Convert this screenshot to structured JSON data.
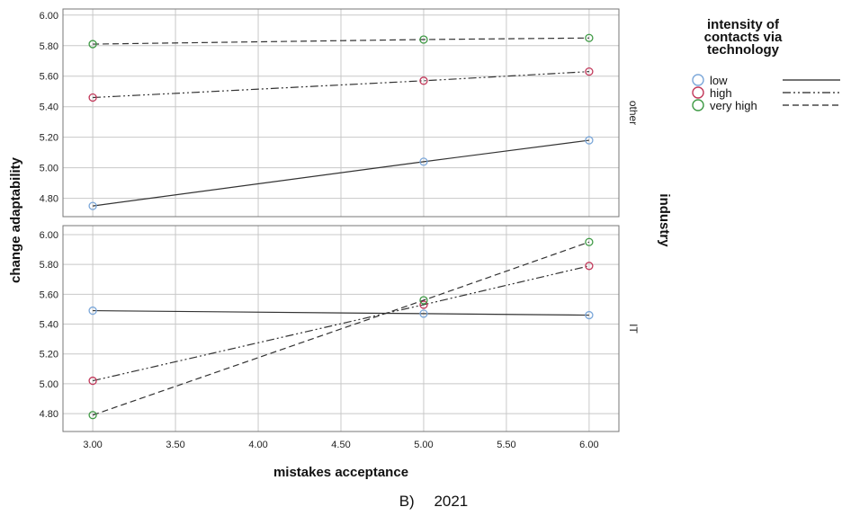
{
  "chart_data": {
    "type": "line",
    "x": [
      3,
      5,
      6
    ],
    "x_ticks": [
      "3.00",
      "3.50",
      "4.00",
      "4.50",
      "5.00",
      "5.50",
      "6.00"
    ],
    "xlim": [
      2.82,
      6.18
    ],
    "xlabel": "mistakes acceptance",
    "ylabel": "change adaptability",
    "row_label": "industry",
    "legend": {
      "title_lines": [
        "intensity of",
        "contacts via",
        "technology"
      ],
      "placement": "top-right, outside plot"
    },
    "grid": true,
    "caption": "B)  2021",
    "panels": [
      {
        "label": "other",
        "ylim": [
          4.68,
          6.04
        ],
        "y_ticks": [
          "4.80",
          "5.00",
          "5.20",
          "5.40",
          "5.60",
          "5.80",
          "6.00"
        ],
        "series": [
          {
            "name": "low",
            "values": [
              4.75,
              5.04,
              5.18
            ]
          },
          {
            "name": "high",
            "values": [
              5.46,
              5.57,
              5.63
            ]
          },
          {
            "name": "very high",
            "values": [
              5.81,
              5.84,
              5.85
            ]
          }
        ]
      },
      {
        "label": "IT",
        "ylim": [
          4.68,
          6.06
        ],
        "y_ticks": [
          "4.80",
          "5.00",
          "5.20",
          "5.40",
          "5.60",
          "5.80",
          "6.00"
        ],
        "series": [
          {
            "name": "low",
            "values": [
              5.49,
              5.47,
              5.46
            ]
          },
          {
            "name": "high",
            "values": [
              5.02,
              5.53,
              5.79
            ]
          },
          {
            "name": "very high",
            "values": [
              4.79,
              5.56,
              5.95
            ]
          }
        ]
      }
    ],
    "series_styles": [
      {
        "name": "low",
        "marker_color": "#7ba7d9",
        "line": "solid"
      },
      {
        "name": "high",
        "marker_color": "#c2385a",
        "line": "dash-dot-dot"
      },
      {
        "name": "very high",
        "marker_color": "#3f9a45",
        "line": "dashed"
      }
    ]
  }
}
